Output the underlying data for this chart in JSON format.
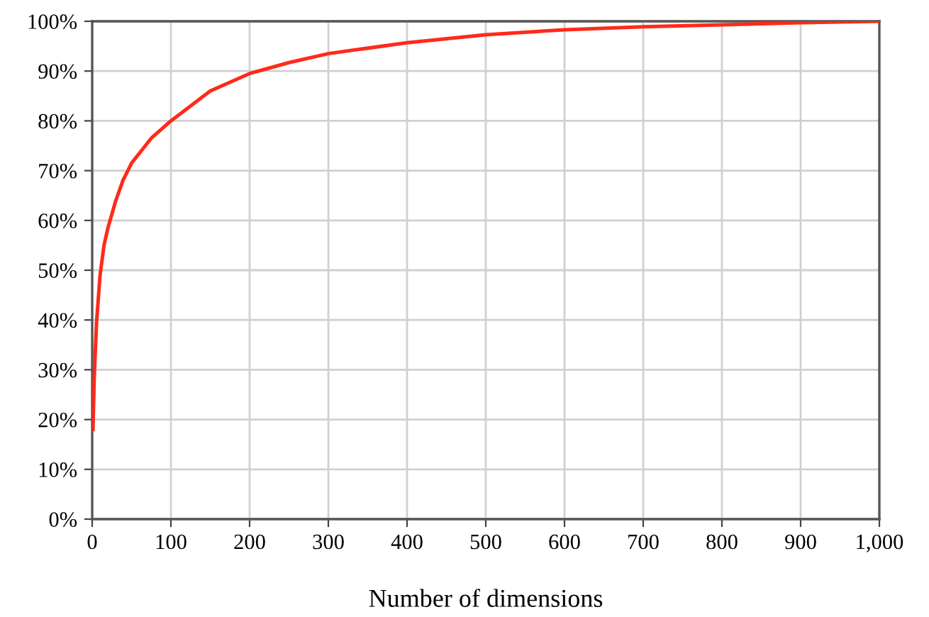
{
  "chart_data": {
    "type": "line",
    "xlabel": "Number of dimensions",
    "series": [
      {
        "color": "#ff2a1a",
        "x": [
          1,
          2.5,
          5.5,
          10,
          15,
          20,
          30,
          39,
          50,
          75,
          100,
          150,
          200,
          250,
          300,
          400,
          500,
          600,
          700,
          800,
          900,
          1000
        ],
        "values": [
          18,
          28,
          39.5,
          49,
          55,
          58.5,
          64,
          68,
          71.5,
          76.5,
          80,
          86,
          89.5,
          91.7,
          93.5,
          95.7,
          97.3,
          98.3,
          98.9,
          99.3,
          99.7,
          100
        ]
      }
    ],
    "xlim": [
      0,
      1000
    ],
    "ylim": [
      0,
      100
    ],
    "xticks": [
      0,
      100,
      200,
      300,
      400,
      500,
      600,
      700,
      800,
      900,
      {
        "value": 1000,
        "label": "1,000"
      }
    ],
    "yticks": [
      {
        "value": 0,
        "label": "0%"
      },
      {
        "value": 10,
        "label": "10%"
      },
      {
        "value": 20,
        "label": "20%"
      },
      {
        "value": 30,
        "label": "30%"
      },
      {
        "value": 40,
        "label": "40%"
      },
      {
        "value": 50,
        "label": "50%"
      },
      {
        "value": 60,
        "label": "60%"
      },
      {
        "value": 70,
        "label": "70%"
      },
      {
        "value": 80,
        "label": "80%"
      },
      {
        "value": 90,
        "label": "90%"
      },
      {
        "value": 100,
        "label": "100%"
      }
    ],
    "grid": true,
    "legend": false,
    "marker": "none",
    "line_style": "solid"
  }
}
